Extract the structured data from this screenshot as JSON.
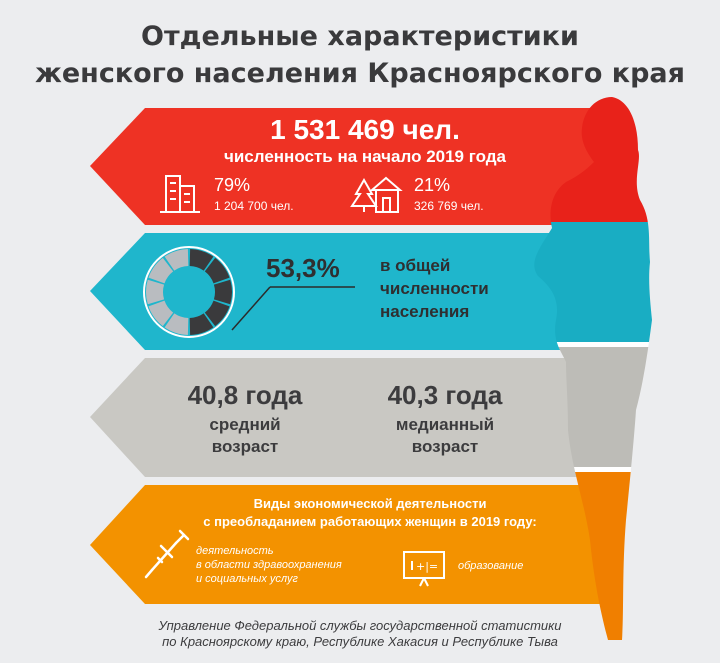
{
  "title": {
    "line1": "Отдельные характеристики",
    "line2": "женского населения Красноярского края"
  },
  "population": {
    "total": "1 531 469 чел.",
    "caption": "численность на начало 2019 года",
    "urban_percent": "79%",
    "urban_count": "1 204 700 чел.",
    "rural_percent": "21%",
    "rural_count": "326 769 чел.",
    "urban_icon": "city-buildings-icon",
    "rural_icon": "village-house-icon"
  },
  "share": {
    "percent": "53,3%",
    "line1": "в общей",
    "line2": "численности",
    "line3": "населения",
    "value": 53.3
  },
  "age": {
    "average_value": "40,8 года",
    "average_line1": "средний",
    "average_line2": "возраст",
    "median_value": "40,3 года",
    "median_line1": "медианный",
    "median_line2": "возраст"
  },
  "activity": {
    "heading1": "Виды экономической деятельности",
    "heading2": "с преобладанием работающих женщин в 2019 году:",
    "item1_line1": "деятельность",
    "item1_line2": "в области здравоохранения",
    "item1_line3": "и социальных услуг",
    "item1_icon": "syringe-icon",
    "item2": "образование",
    "item2_icon": "blackboard-icon"
  },
  "footer": {
    "line1": "Управление Федеральной службы государственной статистики",
    "line2": "по Красноярскому краю, Республике Хакасия и Республике Тыва"
  },
  "colors": {
    "red": "#ee3224",
    "cyan": "#1fb6cc",
    "gray": "#c9c8c3",
    "orange": "#f39200",
    "text_dark": "#3a3a3c"
  }
}
